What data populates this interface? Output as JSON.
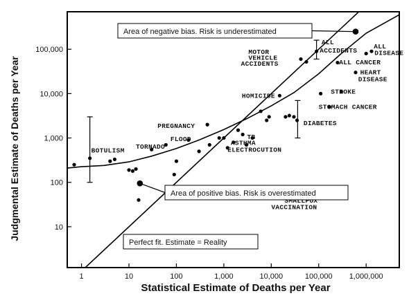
{
  "chart_data": {
    "type": "scatter",
    "x_scale": "log",
    "y_scale": "log",
    "xlim": [
      0.5,
      5000000
    ],
    "ylim": [
      1.2,
      700000
    ],
    "xlabel": "Statistical Estimate of Deaths per Year",
    "ylabel": "Judgmental Estimate of Deaths per Year",
    "x_ticks": [
      {
        "v": 1,
        "label": "1"
      },
      {
        "v": 10,
        "label": "10"
      },
      {
        "v": 100,
        "label": "100"
      },
      {
        "v": 1000,
        "label": "1,000"
      },
      {
        "v": 10000,
        "label": "10,000"
      },
      {
        "v": 100000,
        "label": "100,000"
      },
      {
        "v": 1000000,
        "label": "1,000,000"
      }
    ],
    "y_ticks": [
      {
        "v": 10,
        "label": "10"
      },
      {
        "v": 100,
        "label": "100"
      },
      {
        "v": 1000,
        "label": "1,000"
      },
      {
        "v": 10000,
        "label": "10,000"
      },
      {
        "v": 100000,
        "label": "100,000"
      }
    ],
    "points": [
      {
        "x": 0.7,
        "y": 250
      },
      {
        "x": 1.5,
        "y": 350
      },
      {
        "x": 4,
        "y": 300
      },
      {
        "x": 5,
        "y": 330
      },
      {
        "x": 10,
        "y": 190
      },
      {
        "x": 12,
        "y": 180
      },
      {
        "x": 14,
        "y": 200
      },
      {
        "x": 16,
        "y": 40
      },
      {
        "x": 30,
        "y": 550
      },
      {
        "x": 60,
        "y": 700
      },
      {
        "x": 90,
        "y": 150
      },
      {
        "x": 100,
        "y": 300
      },
      {
        "x": 180,
        "y": 900
      },
      {
        "x": 300,
        "y": 500
      },
      {
        "x": 450,
        "y": 2000
      },
      {
        "x": 500,
        "y": 700
      },
      {
        "x": 800,
        "y": 1000
      },
      {
        "x": 1000,
        "y": 1000
      },
      {
        "x": 1200,
        "y": 600
      },
      {
        "x": 1600,
        "y": 800
      },
      {
        "x": 2000,
        "y": 1500
      },
      {
        "x": 2500,
        "y": 1200
      },
      {
        "x": 3000,
        "y": 700
      },
      {
        "x": 4000,
        "y": 1000
      },
      {
        "x": 6000,
        "y": 4000
      },
      {
        "x": 8000,
        "y": 2500
      },
      {
        "x": 9000,
        "y": 3000
      },
      {
        "x": 15000,
        "y": 9000
      },
      {
        "x": 20000,
        "y": 3000
      },
      {
        "x": 24000,
        "y": 3200
      },
      {
        "x": 30000,
        "y": 3000
      },
      {
        "x": 35000,
        "y": 2500
      },
      {
        "x": 42000,
        "y": 60000
      },
      {
        "x": 55000,
        "y": 52000
      },
      {
        "x": 90000,
        "y": 90000
      },
      {
        "x": 110000,
        "y": 10000
      },
      {
        "x": 170000,
        "y": 5000
      },
      {
        "x": 250000,
        "y": 50000
      },
      {
        "x": 300000,
        "y": 11000
      },
      {
        "x": 600000,
        "y": 30000
      },
      {
        "x": 1000000,
        "y": 80000
      },
      {
        "x": 1300000,
        "y": 90000
      }
    ],
    "error_bars": [
      {
        "x": 1.5,
        "low": 100,
        "high": 3000
      },
      {
        "x": 36000,
        "low": 1000,
        "high": 7000
      },
      {
        "x": 90000,
        "low": 60000,
        "high": 160000
      }
    ],
    "point_labels": [
      {
        "text": "BOTULISM",
        "x": 1.6,
        "y": 470
      },
      {
        "text": "TORNADO",
        "x": 14,
        "y": 580
      },
      {
        "text": "FLOOD",
        "x": 75,
        "y": 850
      },
      {
        "text": "PREGNANCY",
        "x": 40,
        "y": 1700
      },
      {
        "text": "TB",
        "x": 3100,
        "y": 950
      },
      {
        "text": "ASTHMA",
        "x": 1400,
        "y": 700
      },
      {
        "text": "ELECTROCUTION",
        "x": 1200,
        "y": 490
      },
      {
        "text": "HOMICIDE",
        "x": 2400,
        "y": 8000
      },
      {
        "text": "MOTOR",
        "x": 3300,
        "y": 78000
      },
      {
        "text": "VEHICLE",
        "x": 3300,
        "y": 58000
      },
      {
        "text": "ACCIDENTS",
        "x": 2300,
        "y": 43000
      },
      {
        "text": "ALL",
        "x": 115000,
        "y": 130000
      },
      {
        "text": "ACCIDENTS",
        "x": 105000,
        "y": 85000
      },
      {
        "text": "ALL",
        "x": 1450000,
        "y": 105000
      },
      {
        "text": "DISEASE",
        "x": 1500000,
        "y": 74000
      },
      {
        "text": "ALL CANCER",
        "x": 270000,
        "y": 46000
      },
      {
        "text": "HEART",
        "x": 750000,
        "y": 27000
      },
      {
        "text": "DISEASE",
        "x": 680000,
        "y": 19000
      },
      {
        "text": "STROKE",
        "x": 180000,
        "y": 10000
      },
      {
        "text": "STOMACH CANCER",
        "x": 100000,
        "y": 4500
      },
      {
        "text": "DIABETES",
        "x": 48000,
        "y": 1950
      },
      {
        "text": "SMALLPOX",
        "x": 19000,
        "y": 35
      },
      {
        "text": "VACCINATION",
        "x": 10000,
        "y": 25
      }
    ],
    "reference_line": {
      "x0": 0.5,
      "y0": 0.5,
      "x1": 5000000,
      "y1": 5000000
    },
    "fit_curve": [
      {
        "x": 0.5,
        "y": 210
      },
      {
        "x": 1,
        "y": 225
      },
      {
        "x": 3,
        "y": 240
      },
      {
        "x": 10,
        "y": 290
      },
      {
        "x": 30,
        "y": 390
      },
      {
        "x": 100,
        "y": 580
      },
      {
        "x": 300,
        "y": 900
      },
      {
        "x": 1000,
        "y": 1550
      },
      {
        "x": 3000,
        "y": 2700
      },
      {
        "x": 10000,
        "y": 5300
      },
      {
        "x": 30000,
        "y": 10500
      },
      {
        "x": 100000,
        "y": 28000
      },
      {
        "x": 300000,
        "y": 80000
      },
      {
        "x": 1000000,
        "y": 230000
      },
      {
        "x": 5000000,
        "y": 600000
      }
    ],
    "annotations": [
      {
        "text": "Area of negative bias. Risk is underestimated",
        "marker": {
          "x": 600000,
          "y": 250000
        }
      },
      {
        "text": "Area of positive bias. Risk is overestimated",
        "marker": {
          "x": 17,
          "y": 95
        }
      },
      {
        "text": "Perfect fit. Estimate = Reality",
        "marker": {
          "x": 8.5,
          "y": 6.5
        }
      }
    ]
  }
}
